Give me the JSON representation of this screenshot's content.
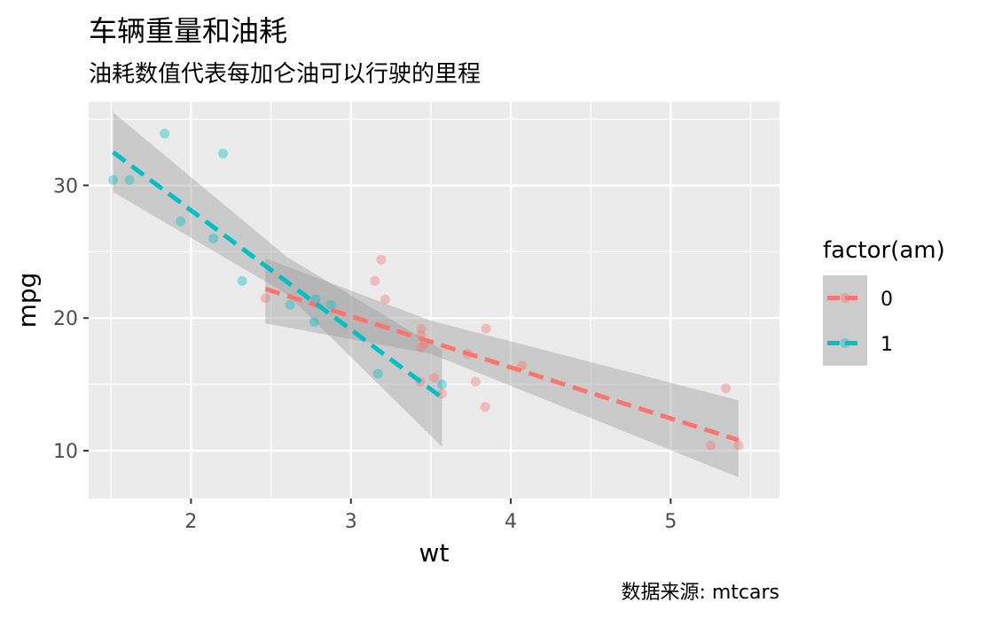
{
  "chart_data": {
    "type": "scatter",
    "title": "车辆重量和油耗",
    "subtitle": "油耗数值代表每加仑油可以行驶的里程",
    "caption": "数据来源: mtcars",
    "xlabel": "wt",
    "ylabel": "mpg",
    "xlim": [
      1.36,
      5.68
    ],
    "ylim": [
      6.4,
      36.3
    ],
    "x_ticks": [
      2,
      3,
      4,
      5
    ],
    "y_ticks": [
      10,
      20,
      30
    ],
    "grid": true,
    "legend": {
      "title": "factor(am)",
      "position": "right"
    },
    "series": [
      {
        "name": "0",
        "color": "#F8766D",
        "points": [
          {
            "x": 3.215,
            "y": 21.4
          },
          {
            "x": 3.44,
            "y": 18.7
          },
          {
            "x": 3.46,
            "y": 18.1
          },
          {
            "x": 3.57,
            "y": 14.3
          },
          {
            "x": 3.19,
            "y": 24.4
          },
          {
            "x": 3.15,
            "y": 22.8
          },
          {
            "x": 3.44,
            "y": 19.2
          },
          {
            "x": 3.44,
            "y": 17.8
          },
          {
            "x": 4.07,
            "y": 16.4
          },
          {
            "x": 3.73,
            "y": 17.3
          },
          {
            "x": 3.78,
            "y": 15.2
          },
          {
            "x": 5.25,
            "y": 10.4
          },
          {
            "x": 5.424,
            "y": 10.4
          },
          {
            "x": 5.345,
            "y": 14.7
          },
          {
            "x": 2.465,
            "y": 21.5
          },
          {
            "x": 3.52,
            "y": 15.5
          },
          {
            "x": 3.435,
            "y": 15.2
          },
          {
            "x": 3.84,
            "y": 13.3
          },
          {
            "x": 3.845,
            "y": 19.2
          }
        ],
        "fit_line": [
          {
            "x": 2.465,
            "y": 22.2
          },
          {
            "x": 5.424,
            "y": 10.8
          }
        ],
        "band": [
          {
            "x": 2.465,
            "lo": 19.6,
            "hi": 24.5
          },
          {
            "x": 3.5,
            "lo": 17.3,
            "hi": 19.8
          },
          {
            "x": 5.424,
            "lo": 8.0,
            "hi": 13.8
          }
        ]
      },
      {
        "name": "1",
        "color": "#00BFC4",
        "points": [
          {
            "x": 2.62,
            "y": 21.0
          },
          {
            "x": 2.875,
            "y": 21.0
          },
          {
            "x": 2.32,
            "y": 22.8
          },
          {
            "x": 2.2,
            "y": 32.4
          },
          {
            "x": 1.615,
            "y": 30.4
          },
          {
            "x": 1.835,
            "y": 33.9
          },
          {
            "x": 1.935,
            "y": 27.3
          },
          {
            "x": 2.14,
            "y": 26.0
          },
          {
            "x": 1.513,
            "y": 30.4
          },
          {
            "x": 3.17,
            "y": 15.8
          },
          {
            "x": 2.77,
            "y": 19.7
          },
          {
            "x": 2.78,
            "y": 21.4
          },
          {
            "x": 3.57,
            "y": 15.0
          }
        ],
        "fit_line": [
          {
            "x": 1.513,
            "y": 32.5
          },
          {
            "x": 3.57,
            "y": 14.0
          }
        ],
        "band": [
          {
            "x": 1.513,
            "lo": 29.5,
            "hi": 35.5
          },
          {
            "x": 2.6,
            "lo": 21.8,
            "hi": 24.6
          },
          {
            "x": 3.57,
            "lo": 10.3,
            "hi": 17.6
          }
        ]
      }
    ]
  }
}
